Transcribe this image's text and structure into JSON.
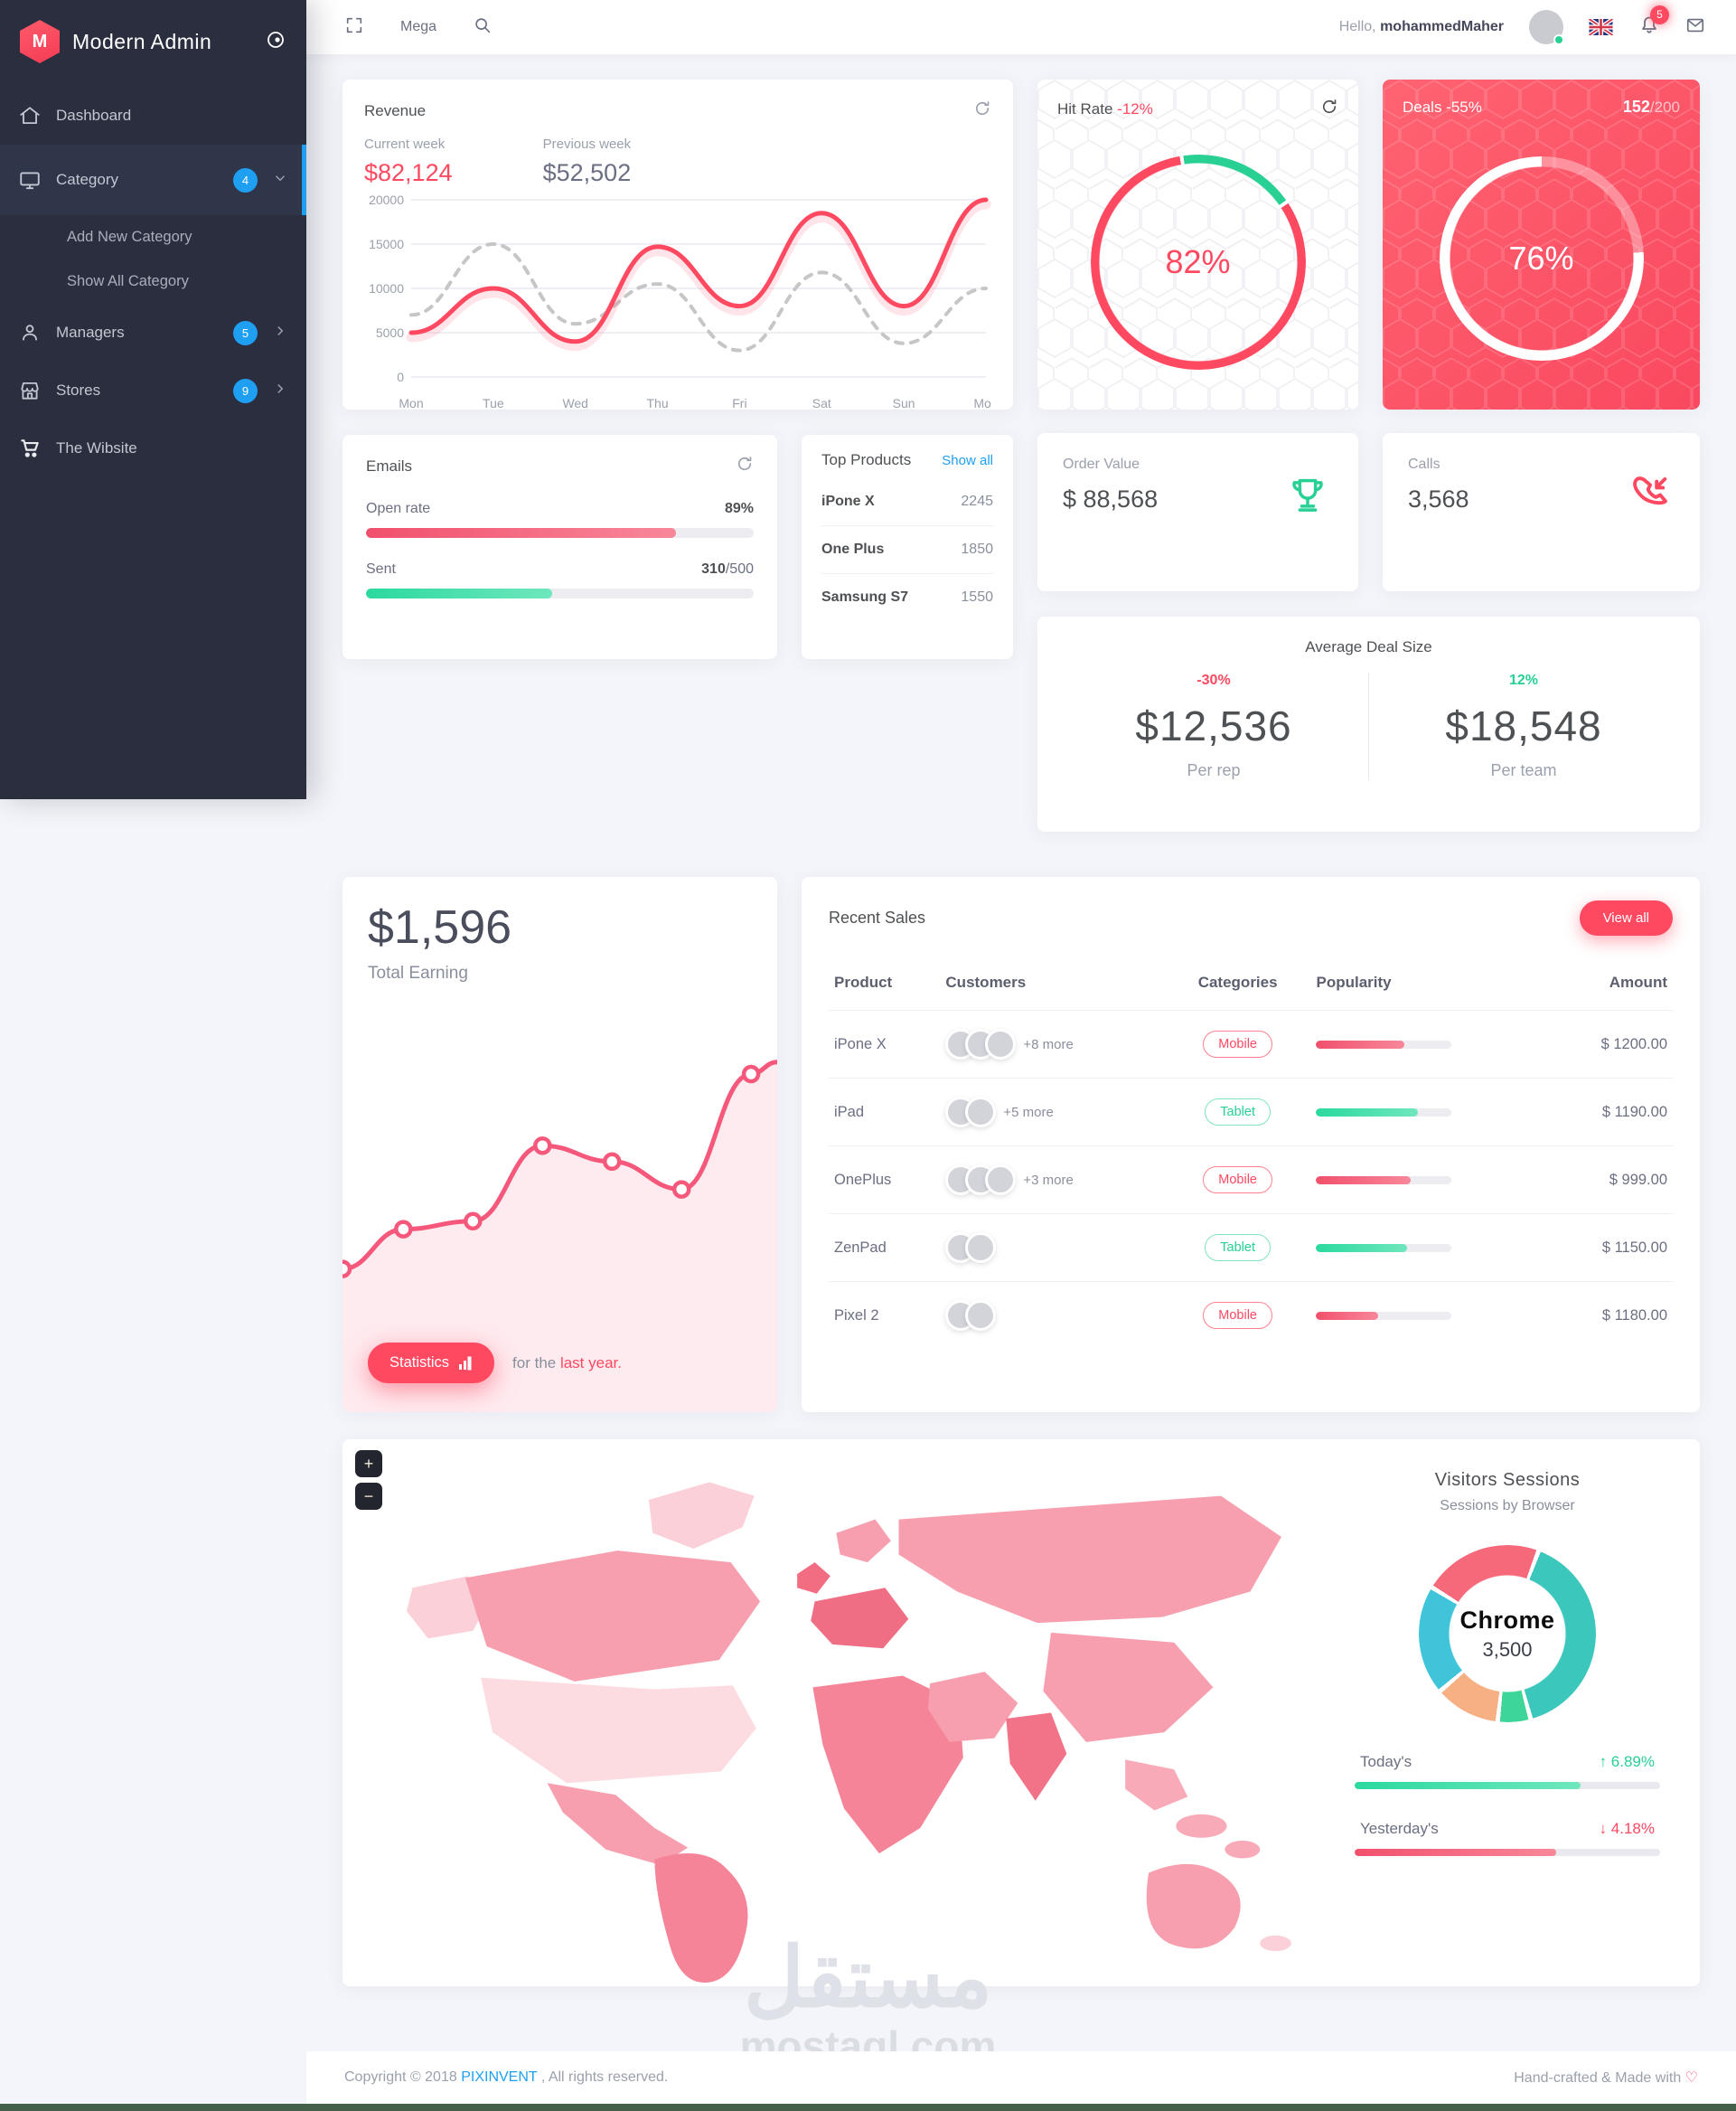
{
  "app": {
    "title": "Modern Admin",
    "brand_initial": "M"
  },
  "sidebar": {
    "items": [
      {
        "label": "Dashboard"
      },
      {
        "label": "Category",
        "badge": "4"
      },
      {
        "label": "Add New Category"
      },
      {
        "label": "Show All Category"
      },
      {
        "label": "Managers",
        "badge": "5"
      },
      {
        "label": "Stores",
        "badge": "9"
      },
      {
        "label": "The Wibsite"
      }
    ]
  },
  "topbar": {
    "menu_label": "Mega",
    "greeting": "Hello,",
    "username": "mohammedMaher",
    "notif_count": "5"
  },
  "revenue": {
    "title": "Revenue",
    "current_label": "Current week",
    "current_value": "$82,124",
    "previous_label": "Previous week",
    "previous_value": "$52,502"
  },
  "hit_rate": {
    "title": "Hit Rate",
    "delta": "-12%",
    "value": "82%"
  },
  "deals": {
    "title": "Deals -55%",
    "count": "152",
    "total": "/200",
    "value": "76%"
  },
  "order_value": {
    "label": "Order Value",
    "value": "$ 88,568"
  },
  "calls": {
    "label": "Calls",
    "value": "3,568"
  },
  "emails": {
    "title": "Emails",
    "open_label": "Open rate",
    "open_value": "89%",
    "open_pct": 80,
    "sent_label": "Sent",
    "sent_bold": "310",
    "sent_rest": "/500",
    "sent_pct": 48
  },
  "top_products": {
    "title": "Top Products",
    "link": "Show all",
    "rows": [
      {
        "name": "iPone X",
        "value": "2245"
      },
      {
        "name": "One Plus",
        "value": "1850"
      },
      {
        "name": "Samsung S7",
        "value": "1550"
      }
    ]
  },
  "avg_deal": {
    "title": "Average Deal Size",
    "left": {
      "delta": "-30%",
      "value": "$12,536",
      "label": "Per rep"
    },
    "right": {
      "delta": "12%",
      "value": "$18,548",
      "label": "Per team"
    }
  },
  "earning": {
    "amount": "$1,596",
    "label": "Total Earning",
    "button": "Statistics",
    "caption_prefix": "for the ",
    "caption_accent": "last year."
  },
  "recent_sales": {
    "title": "Recent Sales",
    "button": "View all",
    "headers": [
      "Product",
      "Customers",
      "Categories",
      "Popularity",
      "Amount"
    ],
    "rows": [
      {
        "product": "iPone X",
        "more": "+8 more",
        "category": "Mobile",
        "popularity_pct": 65,
        "amount": "$ 1200.00"
      },
      {
        "product": "iPad",
        "more": "+5 more",
        "category": "Tablet",
        "popularity_pct": 75,
        "amount": "$ 1190.00"
      },
      {
        "product": "OnePlus",
        "more": "+3 more",
        "category": "Mobile",
        "popularity_pct": 70,
        "amount": "$ 999.00"
      },
      {
        "product": "ZenPad",
        "more": "",
        "category": "Tablet",
        "popularity_pct": 67,
        "amount": "$ 1150.00"
      },
      {
        "product": "Pixel 2",
        "more": "",
        "category": "Mobile",
        "popularity_pct": 46,
        "amount": "$ 1180.00"
      }
    ]
  },
  "map": {
    "zoom_in": "+",
    "zoom_out": "−"
  },
  "visitors": {
    "title": "Visitors Sessions",
    "subtitle": "Sessions by Browser",
    "center_label": "Chrome",
    "center_value": "3,500",
    "today_label": "Today's",
    "today_delta": "↑ 6.89%",
    "today_pct": 74,
    "yesterday_label": "Yesterday's",
    "yesterday_delta": "↓ 4.18%",
    "yesterday_pct": 66
  },
  "footer": {
    "copyright_prefix": "Copyright © 2018 ",
    "brand": "PIXINVENT",
    "copyright_suffix": " , All rights reserved.",
    "made": "Hand-crafted & Made with ",
    "heart": "♡"
  },
  "watermark": {
    "line1": "مستقل",
    "line2": "mostaql.com"
  },
  "chart_data": [
    {
      "id": "revenue",
      "type": "line",
      "x": [
        "Mon",
        "Tue",
        "Wed",
        "Thu",
        "Fri",
        "Sat",
        "Sun",
        "Mon"
      ],
      "ylim": [
        0,
        20000
      ],
      "yticks": [
        0,
        5000,
        10000,
        15000,
        20000
      ],
      "grid": true,
      "legend": "none",
      "series": [
        {
          "name": "Current week",
          "color": "#ff4961",
          "style": "solid",
          "values": [
            5000,
            10000,
            4000,
            14700,
            8000,
            18500,
            8000,
            20000
          ]
        },
        {
          "name": "Previous week",
          "color": "#c6c6c6",
          "style": "dashed",
          "values": [
            7000,
            15000,
            6000,
            10500,
            3000,
            11800,
            3800,
            10000
          ]
        }
      ]
    },
    {
      "id": "hit-rate-gauge",
      "type": "donut",
      "title": "Hit Rate -12%",
      "center": "82%",
      "start_deg": -10,
      "segments": [
        {
          "name": "remainder",
          "value": 18,
          "color": "#28d094"
        },
        {
          "name": "hit",
          "value": 82,
          "color": "#ff4961"
        }
      ]
    },
    {
      "id": "deals-gauge",
      "type": "donut",
      "title": "Deals -55%",
      "center": "76%",
      "start_deg": 0,
      "segments": [
        {
          "name": "remaining",
          "value": 24,
          "color": "rgba(255,255,255,0.35)"
        },
        {
          "name": "done",
          "value": 76,
          "color": "#ffffff"
        }
      ]
    },
    {
      "id": "earning",
      "type": "area",
      "title": "Total Earning $1,596",
      "color": "#f5587b",
      "fill": "rgba(245,88,123,0.12)",
      "points_pct": [
        [
          0,
          64
        ],
        [
          14,
          54
        ],
        [
          30,
          52
        ],
        [
          46,
          33
        ],
        [
          62,
          37
        ],
        [
          78,
          44
        ],
        [
          94,
          15
        ],
        [
          100,
          12
        ]
      ],
      "marker_indices": [
        0,
        1,
        2,
        3,
        4,
        5,
        6
      ]
    },
    {
      "id": "visitors",
      "type": "donut",
      "title": "Sessions by Browser",
      "center": "Chrome 3,500",
      "start_deg": 300,
      "segments": [
        {
          "name": "pink",
          "value": 22,
          "color": "#f5697b"
        },
        {
          "name": "teal",
          "value": 40,
          "color": "#3cc7bd"
        },
        {
          "name": "green",
          "value": 6,
          "color": "#3ed598"
        },
        {
          "name": "orange",
          "value": 12,
          "color": "#f6b084"
        },
        {
          "name": "cyan",
          "value": 20,
          "color": "#3fc4da"
        }
      ]
    }
  ]
}
